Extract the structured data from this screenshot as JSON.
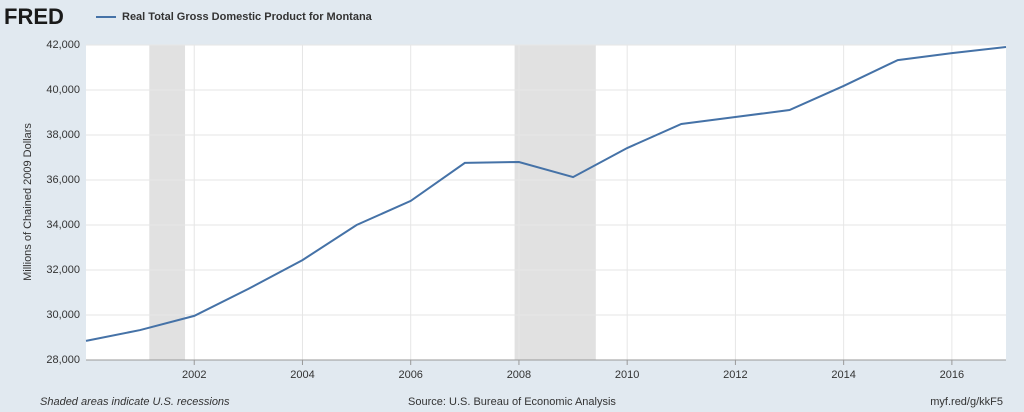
{
  "chart_data": {
    "type": "line",
    "logo": "FRED",
    "y_label": "Millions of Chained 2009 Dollars",
    "footer_left": "Shaded areas indicate U.S. recessions",
    "source": "Source: U.S. Bureau of Economic Analysis",
    "link": "myf.red/g/kkF5",
    "x": [
      2000,
      2001,
      2002,
      2003,
      2004,
      2005,
      2006,
      2007,
      2008,
      2009,
      2010,
      2011,
      2012,
      2013,
      2014,
      2015,
      2016,
      2017
    ],
    "series": [
      {
        "name": "Real Total Gross Domestic Product for Montana",
        "color": "#4572a7",
        "values": [
          28850,
          29330,
          29960,
          31160,
          32440,
          34000,
          35070,
          36760,
          36800,
          36130,
          37420,
          38490,
          38800,
          39110,
          40180,
          41330,
          41640,
          41910
        ]
      }
    ],
    "recessions": [
      [
        2001.17,
        2001.83
      ],
      [
        2007.92,
        2009.42
      ]
    ],
    "recession_color": "#e1e1e1",
    "xlim": [
      2000,
      2017
    ],
    "xticks": [
      2002,
      2004,
      2006,
      2008,
      2010,
      2012,
      2014,
      2016
    ],
    "ylim": [
      28000,
      42000
    ],
    "yticks": [
      {
        "value": 28000,
        "label": "28,000"
      },
      {
        "value": 30000,
        "label": "30,000"
      },
      {
        "value": 32000,
        "label": "32,000"
      },
      {
        "value": 34000,
        "label": "34,000"
      },
      {
        "value": 36000,
        "label": "36,000"
      },
      {
        "value": 38000,
        "label": "38,000"
      },
      {
        "value": 40000,
        "label": "40,000"
      },
      {
        "value": 42000,
        "label": "42,000"
      }
    ],
    "grid": true
  }
}
